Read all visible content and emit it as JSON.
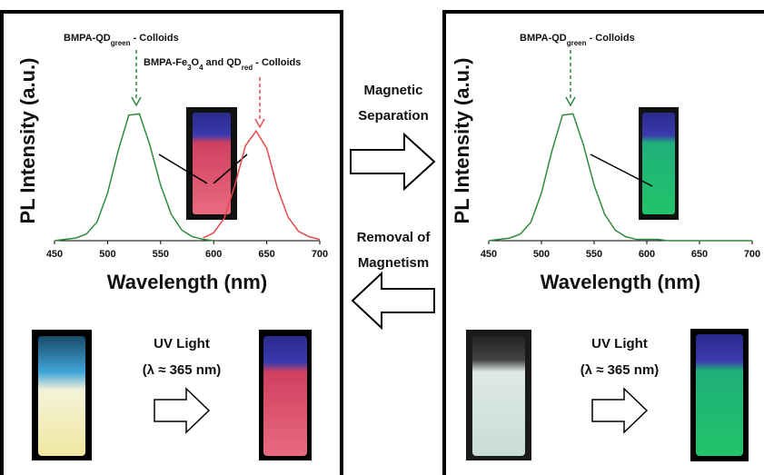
{
  "chart_data": [
    {
      "type": "line",
      "xlabel": "Wavelength (nm)",
      "ylabel": "PL Intensity (a.u.)",
      "x": [
        450,
        460,
        470,
        480,
        490,
        500,
        510,
        520,
        530,
        540,
        550,
        560,
        570,
        580,
        590,
        600,
        610,
        620,
        630,
        640,
        650,
        660,
        670,
        680,
        690,
        700
      ],
      "series": [
        {
          "name": "green",
          "color": "#2e8b3e",
          "values": [
            0,
            0.01,
            0.02,
            0.05,
            0.14,
            0.36,
            0.68,
            0.95,
            0.96,
            0.72,
            0.42,
            0.2,
            0.08,
            0.03,
            0.01,
            0,
            null,
            null,
            null,
            null,
            null,
            null,
            null,
            null,
            null,
            null
          ]
        },
        {
          "name": "red",
          "color": "#e8474d",
          "values": [
            null,
            null,
            null,
            null,
            null,
            null,
            null,
            null,
            null,
            null,
            null,
            null,
            null,
            null,
            0.02,
            0.06,
            0.17,
            0.42,
            0.72,
            0.83,
            0.7,
            0.4,
            0.18,
            0.07,
            0.03,
            0.01
          ]
        }
      ],
      "xlim": [
        450,
        700
      ],
      "xticks": [
        450,
        500,
        550,
        600,
        650,
        700
      ],
      "ylim": [
        0,
        1.65
      ],
      "annotations": [
        {
          "parts": [
            {
              "text": "BMPA-QD"
            },
            {
              "text": "green",
              "sub": true
            },
            {
              "text": " - Colloids"
            }
          ],
          "color": "#2e8b3e"
        },
        {
          "parts": [
            {
              "text": "BMPA-Fe"
            },
            {
              "text": "3",
              "sub": true
            },
            {
              "text": "O"
            },
            {
              "text": "4",
              "sub": true
            },
            {
              "text": " and QD"
            },
            {
              "text": "red",
              "sub": true
            },
            {
              "text": " - Colloids"
            }
          ],
          "color": "#e8474d"
        }
      ]
    },
    {
      "type": "line",
      "xlabel": "Wavelength (nm)",
      "ylabel": "PL Intensity (a.u.)",
      "x": [
        450,
        460,
        470,
        480,
        490,
        500,
        510,
        520,
        530,
        540,
        550,
        560,
        570,
        580,
        590,
        600,
        610,
        620,
        630,
        640,
        650,
        660,
        670,
        680,
        690,
        700
      ],
      "series": [
        {
          "name": "green",
          "color": "#2e8b3e",
          "values": [
            0,
            0.01,
            0.02,
            0.05,
            0.14,
            0.36,
            0.68,
            0.95,
            0.96,
            0.72,
            0.42,
            0.2,
            0.08,
            0.03,
            0.01,
            0.01,
            0.01,
            0,
            0,
            0,
            0,
            0,
            0,
            0,
            0,
            0
          ]
        }
      ],
      "xlim": [
        450,
        700
      ],
      "xticks": [
        450,
        500,
        550,
        600,
        650,
        700
      ],
      "ylim": [
        0,
        1.65
      ],
      "annotations": [
        {
          "parts": [
            {
              "text": "BMPA-QD"
            },
            {
              "text": "green",
              "sub": true
            },
            {
              "text": " - Colloids"
            }
          ],
          "color": "#2e8b3e"
        }
      ]
    }
  ],
  "arrows": {
    "forward": [
      "Magnetic",
      "Separation"
    ],
    "backward": [
      "Removal of",
      "Magnetism"
    ]
  },
  "uv": [
    [
      "UV Light",
      "(λ ≈ 365 nm)"
    ],
    [
      "UV Light",
      "(λ ≈ 365 nm)"
    ]
  ]
}
